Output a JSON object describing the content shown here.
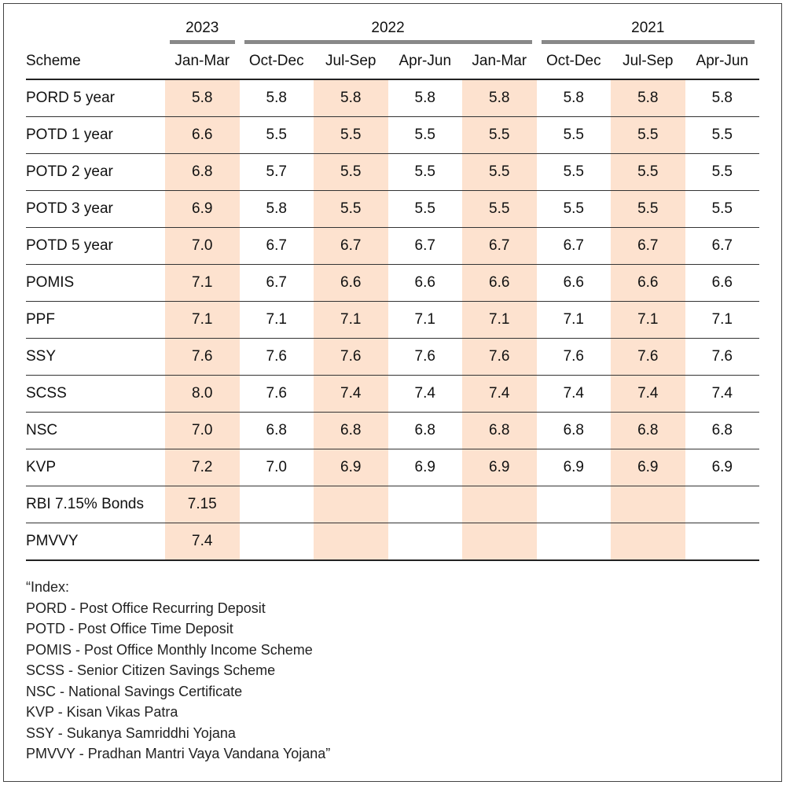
{
  "chart_data": {
    "type": "table",
    "title": "",
    "years": [
      {
        "label": "2023",
        "span": 1
      },
      {
        "label": "2022",
        "span": 4
      },
      {
        "label": "2021",
        "span": 3
      }
    ],
    "columns": [
      "Scheme",
      "Jan-Mar",
      "Oct-Dec",
      "Jul-Sep",
      "Apr-Jun",
      "Jan-Mar",
      "Oct-Dec",
      "Jul-Sep",
      "Apr-Jun"
    ],
    "highlighted_columns": [
      1,
      3,
      5,
      7
    ],
    "highlight_color": "#fde2cf",
    "rows": [
      [
        "PORD 5 year",
        "5.8",
        "5.8",
        "5.8",
        "5.8",
        "5.8",
        "5.8",
        "5.8",
        "5.8"
      ],
      [
        "POTD 1 year",
        "6.6",
        "5.5",
        "5.5",
        "5.5",
        "5.5",
        "5.5",
        "5.5",
        "5.5"
      ],
      [
        "POTD 2 year",
        "6.8",
        "5.7",
        "5.5",
        "5.5",
        "5.5",
        "5.5",
        "5.5",
        "5.5"
      ],
      [
        "POTD 3 year",
        "6.9",
        "5.8",
        "5.5",
        "5.5",
        "5.5",
        "5.5",
        "5.5",
        "5.5"
      ],
      [
        "POTD 5 year",
        "7.0",
        "6.7",
        "6.7",
        "6.7",
        "6.7",
        "6.7",
        "6.7",
        "6.7"
      ],
      [
        "POMIS",
        "7.1",
        "6.7",
        "6.6",
        "6.6",
        "6.6",
        "6.6",
        "6.6",
        "6.6"
      ],
      [
        "PPF",
        "7.1",
        "7.1",
        "7.1",
        "7.1",
        "7.1",
        "7.1",
        "7.1",
        "7.1"
      ],
      [
        "SSY",
        "7.6",
        "7.6",
        "7.6",
        "7.6",
        "7.6",
        "7.6",
        "7.6",
        "7.6"
      ],
      [
        "SCSS",
        "8.0",
        "7.6",
        "7.4",
        "7.4",
        "7.4",
        "7.4",
        "7.4",
        "7.4"
      ],
      [
        "NSC",
        "7.0",
        "6.8",
        "6.8",
        "6.8",
        "6.8",
        "6.8",
        "6.8",
        "6.8"
      ],
      [
        "KVP",
        "7.2",
        "7.0",
        "6.9",
        "6.9",
        "6.9",
        "6.9",
        "6.9",
        "6.9"
      ],
      [
        "RBI 7.15% Bonds",
        "7.15",
        "",
        "",
        "",
        "",
        "",
        "",
        ""
      ],
      [
        "PMVVY",
        "7.4",
        "",
        "",
        "",
        "",
        "",
        "",
        ""
      ]
    ]
  },
  "notes": [
    "“Index:",
    "PORD - Post Office Recurring Deposit",
    "POTD - Post Office Time Deposit",
    "POMIS - Post Office Monthly Income Scheme",
    "SCSS - Senior Citizen Savings Scheme",
    "NSC - National Savings Certificate",
    "KVP - Kisan Vikas Patra",
    "SSY - Sukanya Samriddhi Yojana",
    "PMVVY - Pradhan Mantri Vaya Vandana Yojana”"
  ]
}
